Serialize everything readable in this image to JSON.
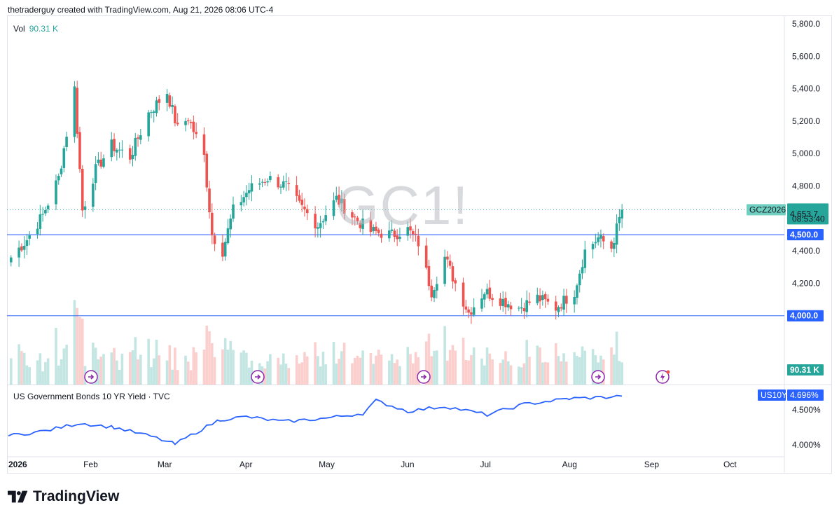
{
  "header": {
    "credit": "thetraderguy created with TradingView.com, Aug 21, 2026 08:06 UTC-4"
  },
  "volume": {
    "label": "Vol",
    "value": "90.31 K"
  },
  "watermark": {
    "text": "GC1!"
  },
  "bond_legend": {
    "text": "US Government Bonds 10 YR Yield · TVC"
  },
  "badges": {
    "symbol": "GCZ2026",
    "price": "4,653.7",
    "countdown": "08:53:40",
    "level_upper": "4,500.0",
    "level_lower": "4,000.0",
    "volume": "90.31 K",
    "bond_symbol": "US10Y",
    "bond_value": "4.696%"
  },
  "brand": {
    "name": "TradingView"
  },
  "colors": {
    "up": "#26a69a",
    "down": "#ef5350",
    "line": "#2962ff",
    "bond": "#2962ff"
  },
  "event_icons": [
    "arrow-circle-icon",
    "arrow-circle-icon",
    "arrow-circle-icon",
    "arrow-circle-icon",
    "lightning-circle-icon"
  ],
  "chart_data": {
    "type": "candlestick",
    "price_axis": {
      "ticks": [
        4000,
        4200,
        4400,
        4600,
        4800,
        5000,
        5200,
        5400,
        5600,
        5800
      ],
      "tick_labels": [
        "4,000.0",
        "4,200.0",
        "4,400.0",
        "4,600.0",
        "4,800.0",
        "5,000.0",
        "5,200.0",
        "5,400.0",
        "5,600.0",
        "5,800.0"
      ],
      "range": [
        3950,
        5810
      ]
    },
    "horizontal_levels": [
      4500,
      4000
    ],
    "last_price": 4653.7,
    "time_axis": {
      "labels": [
        "2026",
        "Feb",
        "Mar",
        "Apr",
        "May",
        "Jun",
        "Jul",
        "Aug",
        "Sep",
        "Oct"
      ]
    },
    "bond_axis": {
      "ticks": [
        4.0,
        4.5
      ],
      "tick_labels": [
        "4.000%",
        "4.500%"
      ]
    },
    "bond_last": 4.696,
    "anchors": [
      {
        "date": "2026-01-02",
        "price": 4360
      },
      {
        "date": "2026-01-08",
        "price": 4470
      },
      {
        "date": "2026-01-14",
        "price": 4620
      },
      {
        "date": "2026-01-20",
        "price": 4850
      },
      {
        "date": "2026-01-26",
        "price": 5400
      },
      {
        "date": "2026-01-29",
        "price": 4650
      },
      {
        "date": "2026-02-03",
        "price": 4900
      },
      {
        "date": "2026-02-09",
        "price": 5050
      },
      {
        "date": "2026-02-16",
        "price": 4980
      },
      {
        "date": "2026-02-23",
        "price": 5250
      },
      {
        "date": "2026-03-02",
        "price": 5380
      },
      {
        "date": "2026-03-06",
        "price": 5150
      },
      {
        "date": "2026-03-10",
        "price": 5220
      },
      {
        "date": "2026-03-16",
        "price": 4980
      },
      {
        "date": "2026-03-19",
        "price": 4500
      },
      {
        "date": "2026-03-23",
        "price": 4400
      },
      {
        "date": "2026-03-27",
        "price": 4650
      },
      {
        "date": "2026-04-02",
        "price": 4780
      },
      {
        "date": "2026-04-09",
        "price": 4850
      },
      {
        "date": "2026-04-16",
        "price": 4800
      },
      {
        "date": "2026-04-21",
        "price": 4680
      },
      {
        "date": "2026-04-28",
        "price": 4560
      },
      {
        "date": "2026-05-05",
        "price": 4720
      },
      {
        "date": "2026-05-12",
        "price": 4600
      },
      {
        "date": "2026-05-18",
        "price": 4520
      },
      {
        "date": "2026-05-26",
        "price": 4500
      },
      {
        "date": "2026-06-01",
        "price": 4530
      },
      {
        "date": "2026-06-05",
        "price": 4450
      },
      {
        "date": "2026-06-10",
        "price": 4150
      },
      {
        "date": "2026-06-15",
        "price": 4360
      },
      {
        "date": "2026-06-19",
        "price": 4200
      },
      {
        "date": "2026-06-24",
        "price": 4020
      },
      {
        "date": "2026-06-30",
        "price": 4150
      },
      {
        "date": "2026-07-06",
        "price": 4100
      },
      {
        "date": "2026-07-13",
        "price": 4050
      },
      {
        "date": "2026-07-20",
        "price": 4110
      },
      {
        "date": "2026-07-27",
        "price": 4050
      },
      {
        "date": "2026-08-03",
        "price": 4150
      },
      {
        "date": "2026-08-07",
        "price": 4400
      },
      {
        "date": "2026-08-12",
        "price": 4480
      },
      {
        "date": "2026-08-17",
        "price": 4420
      },
      {
        "date": "2026-08-21",
        "price": 4653.7
      }
    ],
    "bond_series": [
      {
        "date": "2026-01-01",
        "value": 4.13
      },
      {
        "date": "2026-01-15",
        "value": 4.2
      },
      {
        "date": "2026-01-28",
        "value": 4.31
      },
      {
        "date": "2026-02-10",
        "value": 4.25
      },
      {
        "date": "2026-02-24",
        "value": 4.12
      },
      {
        "date": "2026-03-05",
        "value": 4.01
      },
      {
        "date": "2026-03-15",
        "value": 4.22
      },
      {
        "date": "2026-03-22",
        "value": 4.36
      },
      {
        "date": "2026-04-01",
        "value": 4.4
      },
      {
        "date": "2026-04-15",
        "value": 4.33
      },
      {
        "date": "2026-05-01",
        "value": 4.38
      },
      {
        "date": "2026-05-15",
        "value": 4.45
      },
      {
        "date": "2026-05-20",
        "value": 4.63
      },
      {
        "date": "2026-06-01",
        "value": 4.48
      },
      {
        "date": "2026-06-15",
        "value": 4.55
      },
      {
        "date": "2026-07-01",
        "value": 4.43
      },
      {
        "date": "2026-07-15",
        "value": 4.58
      },
      {
        "date": "2026-08-01",
        "value": 4.66
      },
      {
        "date": "2026-08-15",
        "value": 4.68
      },
      {
        "date": "2026-08-21",
        "value": 4.696
      }
    ]
  }
}
